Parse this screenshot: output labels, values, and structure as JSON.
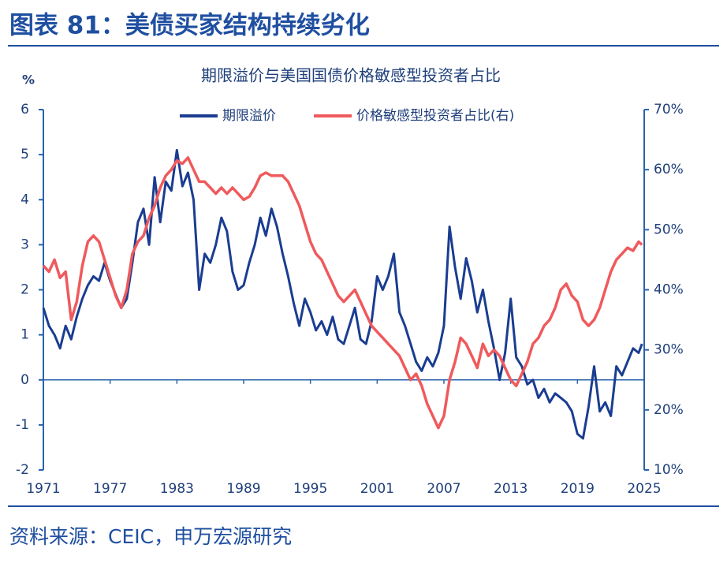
{
  "header": {
    "title": "图表 81：美债买家结构持续劣化"
  },
  "chart_data": {
    "type": "line",
    "title": "期限溢价与美国国债价格敏感型投资者占比",
    "y_label": "%",
    "x": [
      1971,
      1971.5,
      1972,
      1972.5,
      1973,
      1973.5,
      1974,
      1974.5,
      1975,
      1975.5,
      1976,
      1976.5,
      1977,
      1977.5,
      1978,
      1978.5,
      1979,
      1979.5,
      1980,
      1980.5,
      1981,
      1981.5,
      1982,
      1982.5,
      1983,
      1983.5,
      1984,
      1984.5,
      1985,
      1985.5,
      1986,
      1986.5,
      1987,
      1987.5,
      1988,
      1988.5,
      1989,
      1989.5,
      1990,
      1990.5,
      1991,
      1991.5,
      1992,
      1992.5,
      1993,
      1993.5,
      1994,
      1994.5,
      1995,
      1995.5,
      1996,
      1996.5,
      1997,
      1997.5,
      1998,
      1998.5,
      1999,
      1999.5,
      2000,
      2000.5,
      2001,
      2001.5,
      2002,
      2002.5,
      2003,
      2003.5,
      2004,
      2004.5,
      2005,
      2005.5,
      2006,
      2006.5,
      2007,
      2007.5,
      2008,
      2008.5,
      2009,
      2009.5,
      2010,
      2010.5,
      2011,
      2011.5,
      2012,
      2012.5,
      2013,
      2013.5,
      2014,
      2014.5,
      2015,
      2015.5,
      2016,
      2016.5,
      2017,
      2017.5,
      2018,
      2018.5,
      2019,
      2019.5,
      2020,
      2020.5,
      2021,
      2021.5,
      2022,
      2022.5,
      2023,
      2023.5,
      2024,
      2024.5,
      2024.8
    ],
    "series": [
      {
        "name": "期限溢价",
        "color": "#1a3d91",
        "axis": "y",
        "values": [
          1.6,
          1.2,
          1.0,
          0.7,
          1.2,
          0.9,
          1.4,
          1.8,
          2.1,
          2.3,
          2.2,
          2.6,
          2.2,
          1.9,
          1.6,
          1.8,
          2.6,
          3.5,
          3.8,
          3.0,
          4.5,
          3.5,
          4.4,
          4.2,
          5.1,
          4.3,
          4.6,
          4.0,
          2.0,
          2.8,
          2.6,
          3.0,
          3.6,
          3.3,
          2.4,
          2.0,
          2.1,
          2.6,
          3.0,
          3.6,
          3.2,
          3.8,
          3.4,
          2.8,
          2.3,
          1.7,
          1.2,
          1.8,
          1.5,
          1.1,
          1.3,
          1.0,
          1.4,
          0.9,
          0.8,
          1.2,
          1.6,
          0.9,
          0.8,
          1.3,
          2.3,
          2.0,
          2.3,
          2.8,
          1.5,
          1.2,
          0.8,
          0.4,
          0.2,
          0.5,
          0.3,
          0.6,
          1.2,
          3.4,
          2.5,
          1.8,
          2.7,
          2.2,
          1.5,
          2.0,
          1.3,
          0.7,
          0.0,
          0.6,
          1.8,
          0.5,
          0.3,
          -0.1,
          0.0,
          -0.4,
          -0.2,
          -0.5,
          -0.3,
          -0.4,
          -0.5,
          -0.7,
          -1.2,
          -1.3,
          -0.6,
          0.3,
          -0.7,
          -0.5,
          -0.8,
          0.3,
          0.1,
          0.4,
          0.7,
          0.6,
          0.8
        ]
      },
      {
        "name": "价格敏感型投资者占比(右)",
        "color": "#ef5a5c",
        "axis": "y2",
        "values": [
          44,
          43,
          45,
          42,
          43,
          35,
          38,
          44,
          48,
          49,
          48,
          45,
          42,
          39,
          37,
          40,
          46,
          48,
          49,
          52,
          54,
          57,
          59,
          60,
          61.5,
          61,
          62,
          60,
          58,
          58,
          57,
          56,
          57,
          56,
          57,
          56,
          55,
          55.5,
          57,
          59,
          59.5,
          59,
          59,
          59,
          58,
          56,
          54,
          51,
          48,
          46,
          45,
          43,
          41,
          39,
          38,
          39,
          40,
          38,
          36,
          34,
          33,
          32,
          31,
          30,
          29,
          27,
          25,
          26,
          24,
          21,
          19,
          17,
          19,
          25,
          28,
          32,
          31,
          29,
          27,
          31,
          29,
          30,
          29,
          27,
          25,
          24,
          26,
          28,
          31,
          32,
          34,
          35,
          37,
          40,
          41,
          39,
          38,
          35,
          34,
          35,
          37,
          40,
          43,
          45,
          46,
          47,
          46.5,
          48,
          47.5
        ]
      }
    ],
    "xlim": [
      1971,
      2025
    ],
    "xticks": [
      1971,
      1977,
      1983,
      1989,
      1995,
      2001,
      2007,
      2013,
      2019,
      2025
    ],
    "ylim": [
      -2,
      6
    ],
    "yticks": [
      -2,
      -1,
      0,
      1,
      2,
      3,
      4,
      5,
      6
    ],
    "y2lim": [
      10,
      70
    ],
    "y2ticks": [
      {
        "value": 10,
        "label": "10%"
      },
      {
        "value": 20,
        "label": "20%"
      },
      {
        "value": 30,
        "label": "30%"
      },
      {
        "value": 40,
        "label": "40%"
      },
      {
        "value": 50,
        "label": "50%"
      },
      {
        "value": 60,
        "label": "60%"
      },
      {
        "value": 70,
        "label": "70%"
      }
    ],
    "grid": false
  },
  "source": "资料来源：CEIC，申万宏源研究"
}
